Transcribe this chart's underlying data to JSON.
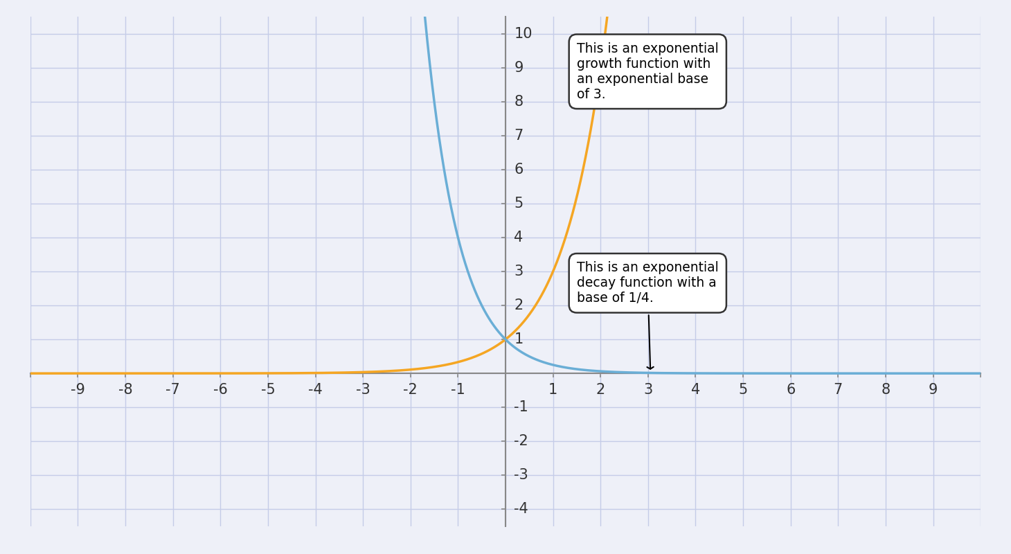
{
  "xlim": [
    -10,
    10
  ],
  "ylim": [
    -4.5,
    10.5
  ],
  "display_ylim": [
    -4,
    10
  ],
  "xticks": [
    -9,
    -8,
    -7,
    -6,
    -5,
    -4,
    -3,
    -2,
    -1,
    1,
    2,
    3,
    4,
    5,
    6,
    7,
    8,
    9
  ],
  "yticks": [
    -4,
    -3,
    -2,
    -1,
    1,
    2,
    3,
    4,
    5,
    6,
    7,
    8,
    9,
    10
  ],
  "growth_color": "#f5a623",
  "decay_color": "#6aaed6",
  "bg_color": "#eef0f8",
  "axes_color": "#888888",
  "grid_color": "#c5cce8",
  "annotation_growth_text": "This is an exponential\ngrowth function with\nan exponential base\nof 3.",
  "annotation_decay_text": "This is an exponential\ndecay function with a\nbase of 1/4.",
  "growth_base": 3,
  "decay_base": 0.25,
  "line_width": 2.5,
  "tick_fontsize": 15,
  "fig_width": 14.6,
  "fig_height": 8.0
}
